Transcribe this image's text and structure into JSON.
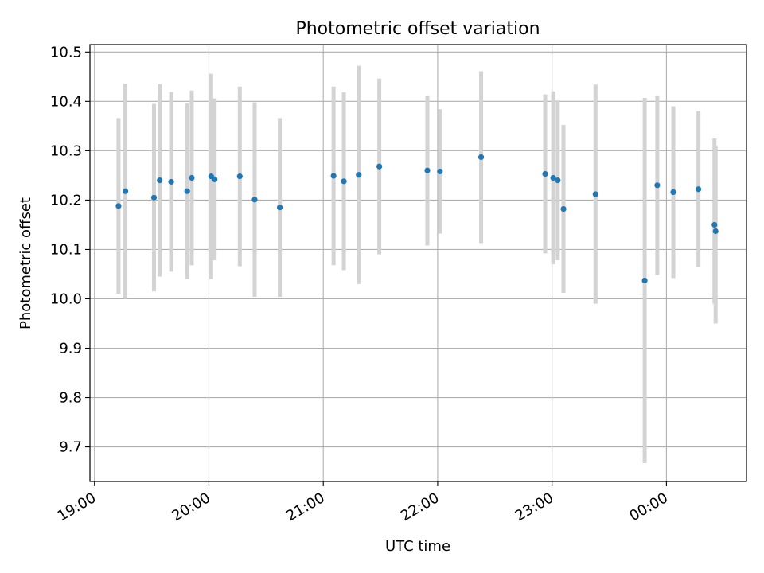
{
  "chart_data": {
    "type": "scatter",
    "title": "Photometric offset variation",
    "xlabel": "UTC time",
    "ylabel": "Photometric offset",
    "x_unit": "hours since 19:00 UTC",
    "xlim": [
      -0.04,
      5.7
    ],
    "ylim": [
      9.63,
      10.515
    ],
    "grid": true,
    "x_ticks": [
      {
        "value": 0,
        "label": "19:00"
      },
      {
        "value": 1,
        "label": "20:00"
      },
      {
        "value": 2,
        "label": "21:00"
      },
      {
        "value": 3,
        "label": "22:00"
      },
      {
        "value": 4,
        "label": "23:00"
      },
      {
        "value": 5,
        "label": "00:00"
      }
    ],
    "y_ticks": [
      {
        "value": 9.7,
        "label": "9.7"
      },
      {
        "value": 9.8,
        "label": "9.8"
      },
      {
        "value": 9.9,
        "label": "9.9"
      },
      {
        "value": 10.0,
        "label": "10.0"
      },
      {
        "value": 10.1,
        "label": "10.1"
      },
      {
        "value": 10.2,
        "label": "10.2"
      },
      {
        "value": 10.3,
        "label": "10.3"
      },
      {
        "value": 10.4,
        "label": "10.4"
      },
      {
        "value": 10.5,
        "label": "10.5"
      }
    ],
    "series": [
      {
        "name": "Photometric offset",
        "marker_color": "#1f77b4",
        "errorbar_color": "#d3d3d3",
        "points": [
          {
            "x": 0.21,
            "y": 10.188,
            "err_low": 10.01,
            "err_high": 10.366
          },
          {
            "x": 0.27,
            "y": 10.218,
            "err_low": 10.0,
            "err_high": 10.436
          },
          {
            "x": 0.52,
            "y": 10.205,
            "err_low": 10.015,
            "err_high": 10.395
          },
          {
            "x": 0.57,
            "y": 10.24,
            "err_low": 10.045,
            "err_high": 10.435
          },
          {
            "x": 0.67,
            "y": 10.237,
            "err_low": 10.055,
            "err_high": 10.419
          },
          {
            "x": 0.81,
            "y": 10.218,
            "err_low": 10.04,
            "err_high": 10.396
          },
          {
            "x": 0.85,
            "y": 10.245,
            "err_low": 10.068,
            "err_high": 10.422
          },
          {
            "x": 1.02,
            "y": 10.248,
            "err_low": 10.04,
            "err_high": 10.456
          },
          {
            "x": 1.05,
            "y": 10.242,
            "err_low": 10.078,
            "err_high": 10.406
          },
          {
            "x": 1.27,
            "y": 10.248,
            "err_low": 10.066,
            "err_high": 10.43
          },
          {
            "x": 1.4,
            "y": 10.201,
            "err_low": 10.004,
            "err_high": 10.398
          },
          {
            "x": 1.62,
            "y": 10.185,
            "err_low": 10.004,
            "err_high": 10.366
          },
          {
            "x": 2.09,
            "y": 10.249,
            "err_low": 10.068,
            "err_high": 10.43
          },
          {
            "x": 2.18,
            "y": 10.238,
            "err_low": 10.058,
            "err_high": 10.418
          },
          {
            "x": 2.31,
            "y": 10.251,
            "err_low": 10.03,
            "err_high": 10.472
          },
          {
            "x": 2.49,
            "y": 10.268,
            "err_low": 10.09,
            "err_high": 10.446
          },
          {
            "x": 2.91,
            "y": 10.26,
            "err_low": 10.108,
            "err_high": 10.412
          },
          {
            "x": 3.02,
            "y": 10.258,
            "err_low": 10.132,
            "err_high": 10.384
          },
          {
            "x": 3.38,
            "y": 10.287,
            "err_low": 10.113,
            "err_high": 10.461
          },
          {
            "x": 3.94,
            "y": 10.253,
            "err_low": 10.092,
            "err_high": 10.414
          },
          {
            "x": 4.01,
            "y": 10.245,
            "err_low": 10.07,
            "err_high": 10.42
          },
          {
            "x": 4.05,
            "y": 10.24,
            "err_low": 10.078,
            "err_high": 10.402
          },
          {
            "x": 4.1,
            "y": 10.182,
            "err_low": 10.012,
            "err_high": 10.352
          },
          {
            "x": 4.38,
            "y": 10.212,
            "err_low": 9.99,
            "err_high": 10.434
          },
          {
            "x": 4.81,
            "y": 10.037,
            "err_low": 9.667,
            "err_high": 10.407
          },
          {
            "x": 4.92,
            "y": 10.23,
            "err_low": 10.048,
            "err_high": 10.412
          },
          {
            "x": 5.06,
            "y": 10.216,
            "err_low": 10.042,
            "err_high": 10.39
          },
          {
            "x": 5.28,
            "y": 10.222,
            "err_low": 10.064,
            "err_high": 10.38
          },
          {
            "x": 5.42,
            "y": 10.15,
            "err_low": 9.99,
            "err_high": 10.325
          },
          {
            "x": 5.43,
            "y": 10.137,
            "err_low": 9.95,
            "err_high": 10.31
          }
        ]
      }
    ]
  }
}
